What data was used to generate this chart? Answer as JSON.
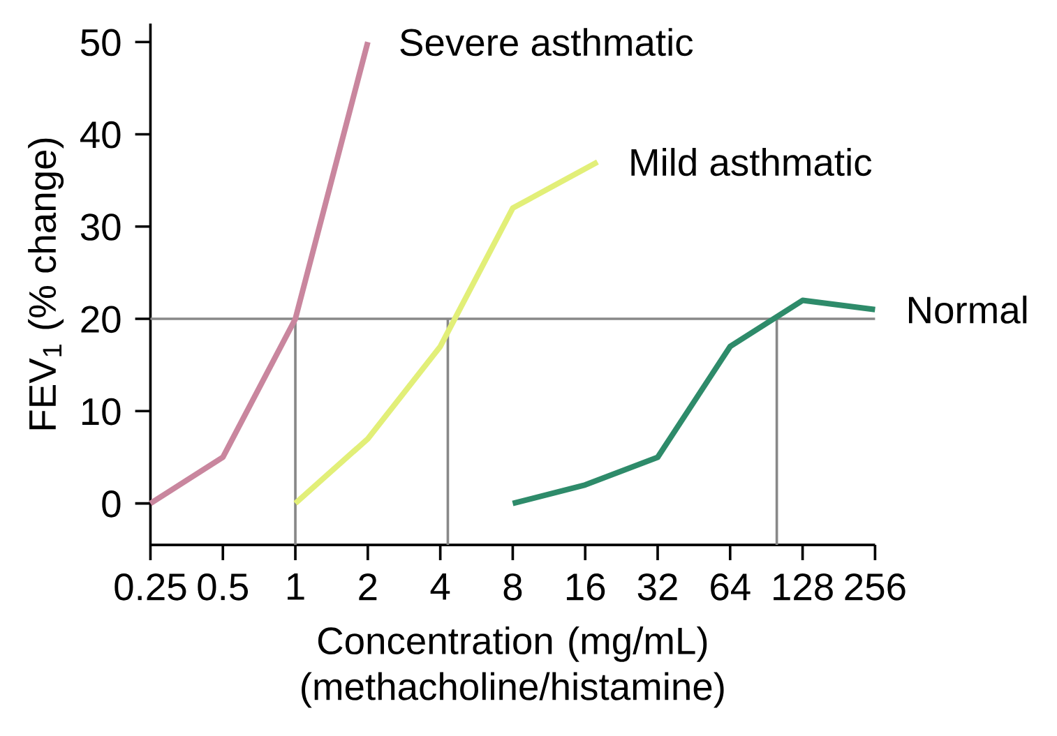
{
  "chart_data": {
    "type": "line",
    "xlabel": "Concentration (mg/mL) (methacholine/histamine)",
    "ylabel": "FEV$_{1}$ (% change)",
    "log": "x",
    "xlim": [
      0.25,
      256
    ],
    "ylim": [
      -4.5,
      52
    ],
    "xticks": [
      0.25,
      0.5,
      1,
      2,
      4,
      8,
      16,
      32,
      64,
      128,
      256
    ],
    "yticks": [
      0,
      10,
      20,
      30,
      40,
      50
    ],
    "series": [
      {
        "name": "Severe asthmatic",
        "color": "#c9869e",
        "x": [
          0.25,
          0.5,
          1,
          2
        ],
        "values": [
          0,
          5,
          20,
          50
        ]
      },
      {
        "name": "Mild asthmatic",
        "color": "#e2ef78",
        "x": [
          1,
          2,
          4,
          8,
          18
        ],
        "values": [
          0,
          7,
          17,
          32,
          37
        ]
      },
      {
        "name": "Normal",
        "color": "#2e8b6a",
        "x": [
          8,
          16,
          32,
          64,
          128,
          256
        ],
        "values": [
          0,
          2,
          5,
          17,
          22,
          21
        ]
      }
    ],
    "ref_lines": [
      {
        "axis": "y",
        "value": 20,
        "color": "#888888"
      },
      {
        "axis": "x",
        "value": 1,
        "color": "#888888"
      },
      {
        "axis": "x",
        "value": 4.3,
        "color": "#888888"
      },
      {
        "axis": "x",
        "value": 100,
        "color": "#888888"
      }
    ]
  }
}
